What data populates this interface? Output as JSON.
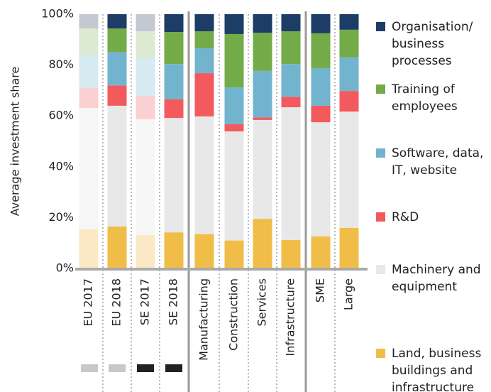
{
  "chart_data": {
    "type": "stacked_bar",
    "ylabel": "Average investment share",
    "categories": [
      "EU 2017",
      "EU 2018",
      "SE 2017",
      "SE 2018",
      "Manufacturing",
      "Construction",
      "Services",
      "Infrastructure",
      "SME",
      "Large"
    ],
    "faded": [
      true,
      false,
      true,
      false,
      false,
      false,
      false,
      false,
      false,
      false
    ],
    "series": [
      {
        "name": "Land, business buildings and infrastructure",
        "color": "#f0bd48",
        "faded_color": "#fbe9c6",
        "values": [
          15.4,
          16.5,
          13.2,
          14.2,
          13.5,
          11,
          19.5,
          11.2,
          12.6,
          16
        ]
      },
      {
        "name": "Machinery and equipment",
        "color": "#e8e8e8",
        "faded_color": "#f6f6f6",
        "values": [
          47.7,
          47.5,
          45.5,
          45,
          46.3,
          42.9,
          38.9,
          52.2,
          44.9,
          45.7
        ]
      },
      {
        "name": "R&D",
        "color": "#f25a5e",
        "faded_color": "#fbd0d2",
        "values": [
          7.9,
          8,
          9.2,
          7.3,
          17,
          2.8,
          1,
          4.1,
          6.5,
          8.1
        ]
      },
      {
        "name": "Software, data, IT, website",
        "color": "#72b4cd",
        "faded_color": "#d6eaf2",
        "values": [
          12.8,
          13.2,
          14.8,
          13.9,
          9.8,
          14.5,
          18.3,
          12.9,
          14.8,
          13.2
        ]
      },
      {
        "name": "Training of employees",
        "color": "#72ab48",
        "faded_color": "#dbead0",
        "values": [
          10.6,
          9.2,
          10.6,
          12.6,
          6.7,
          21,
          15,
          12.9,
          13.7,
          10.9
        ]
      },
      {
        "name": "Organisation/ business processes",
        "color": "#1d3c66",
        "faded_color": "#c3c8d3",
        "values": [
          5.6,
          5.6,
          6.7,
          7,
          6.7,
          7.8,
          7.3,
          6.7,
          7.5,
          6.1
        ]
      }
    ],
    "ylim": [
      0,
      100
    ],
    "yticks": [
      {
        "value": 0,
        "label": "0%"
      },
      {
        "value": 20,
        "label": "20%"
      },
      {
        "value": 40,
        "label": "40%"
      },
      {
        "value": 60,
        "label": "60%"
      },
      {
        "value": 80,
        "label": "80%"
      },
      {
        "value": 100,
        "label": "100%"
      }
    ]
  }
}
